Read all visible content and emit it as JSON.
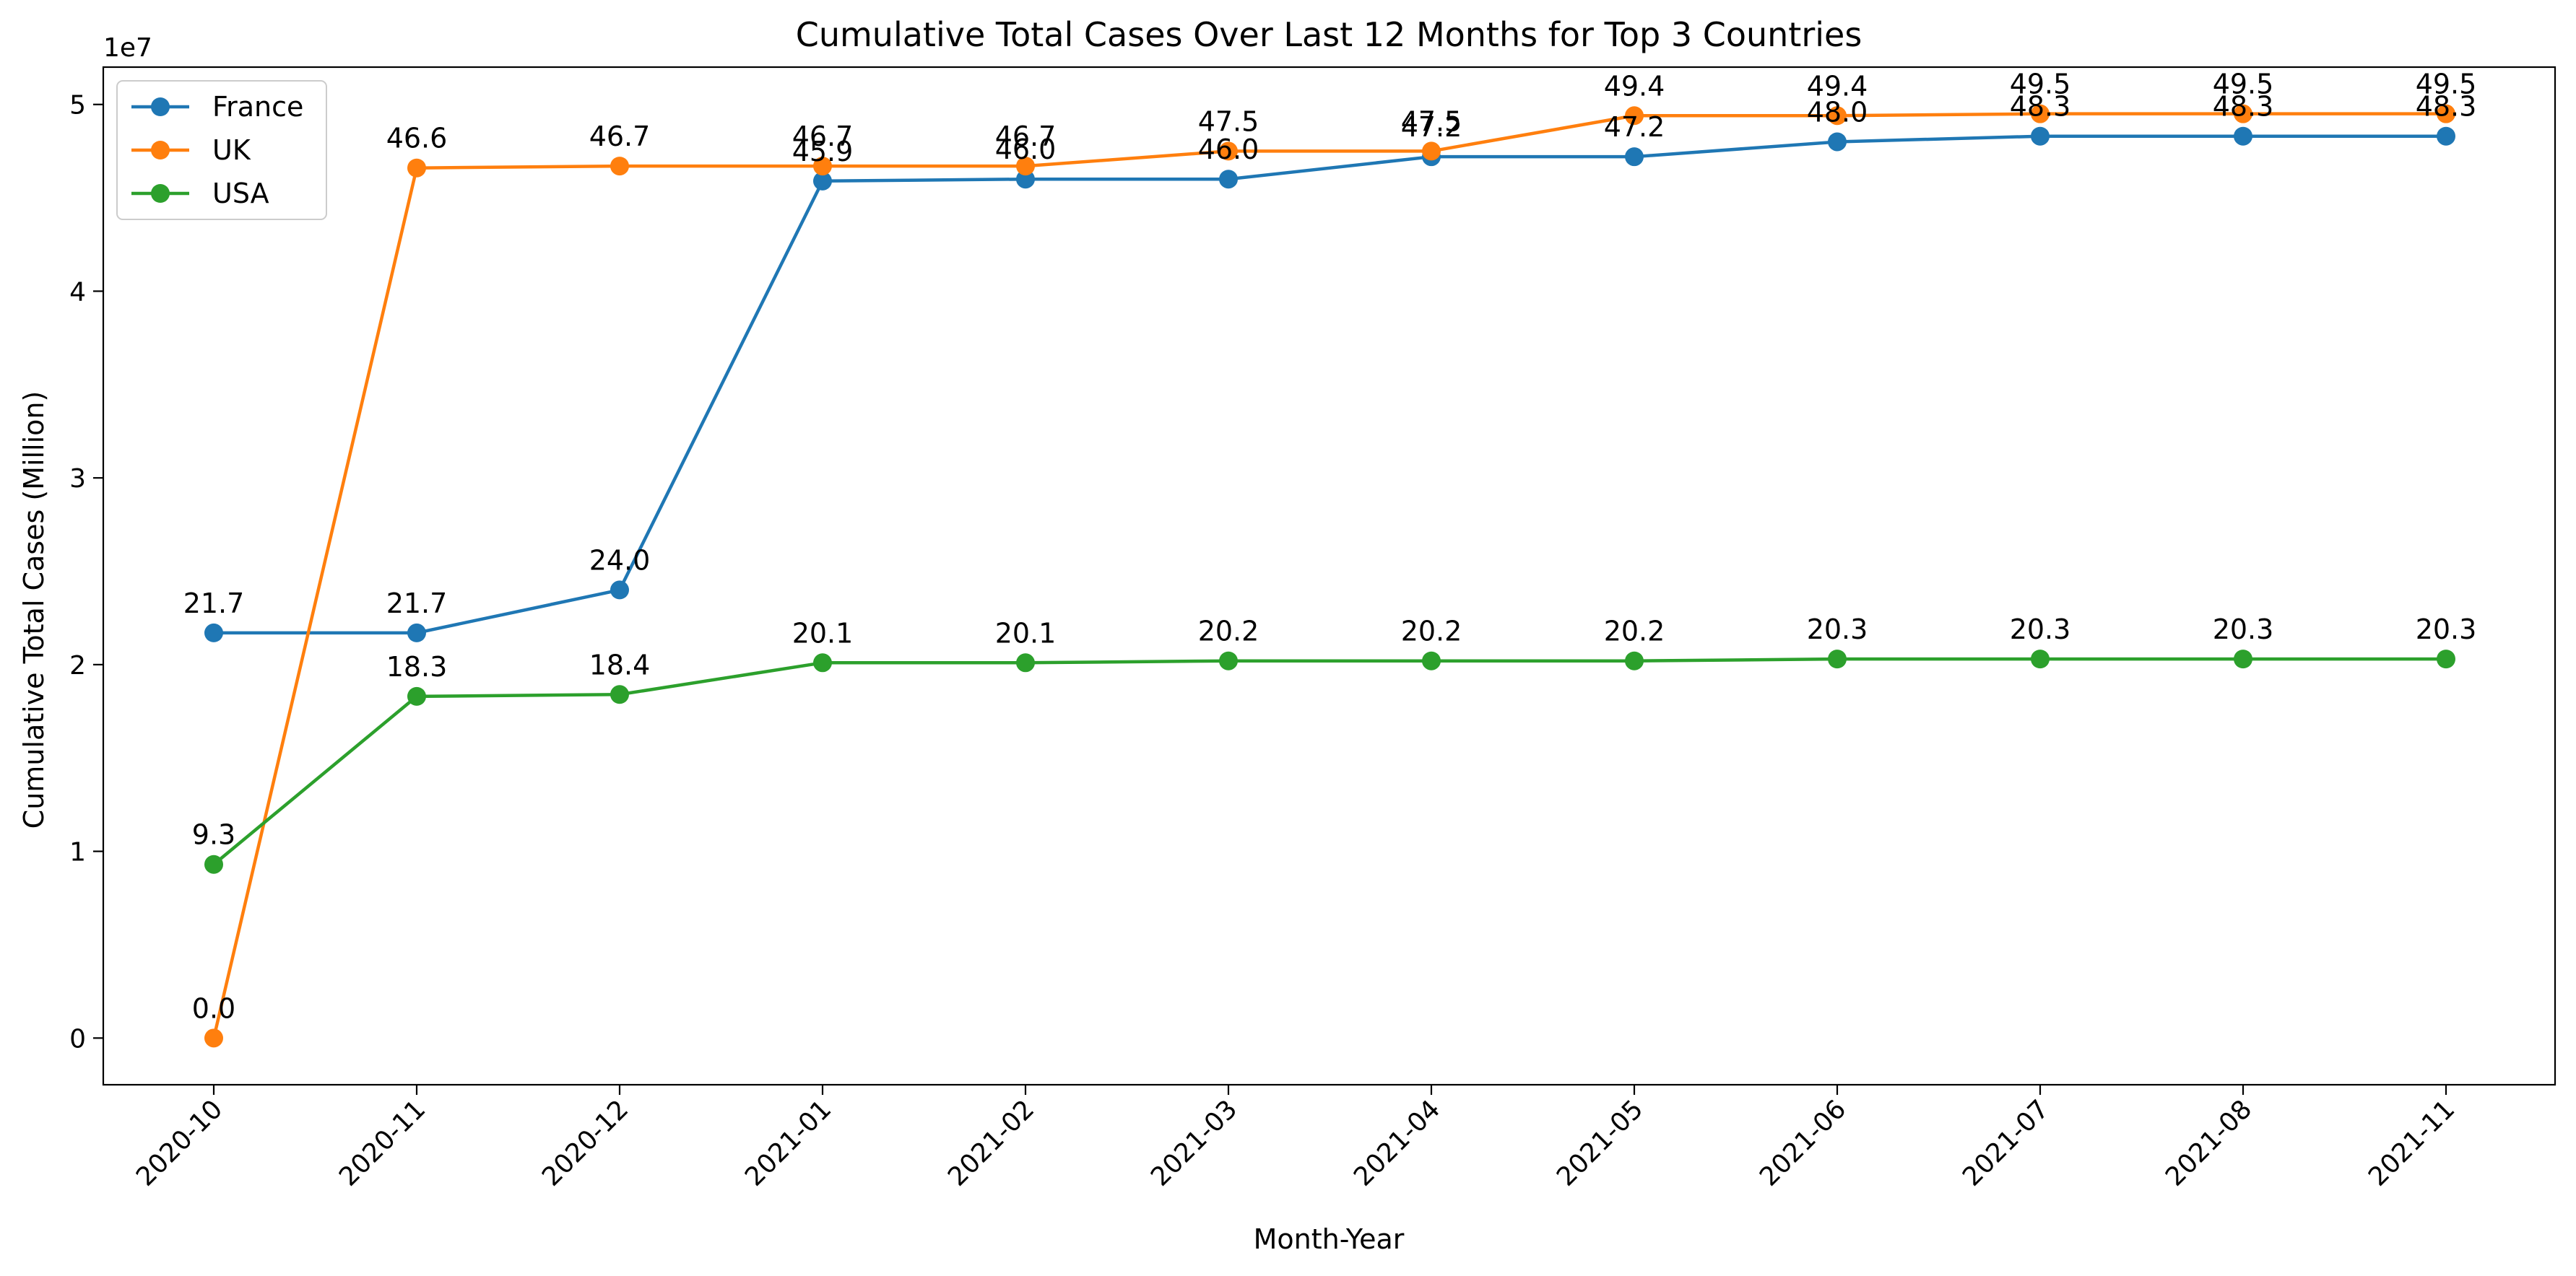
{
  "chart_data": {
    "type": "line",
    "title": "Cumulative Total Cases Over Last 12 Months for Top 3 Countries",
    "xlabel": "Month-Year",
    "ylabel": "Cumulative Total Cases (Million)",
    "y_offset_text": "1e7",
    "categories": [
      "2020-10",
      "2020-11",
      "2020-12",
      "2021-01",
      "2021-02",
      "2021-03",
      "2021-04",
      "2021-05",
      "2021-06",
      "2021-07",
      "2021-08",
      "2021-11"
    ],
    "y_ticks": [
      0,
      1,
      2,
      3,
      4,
      5
    ],
    "ylim": [
      -0.25,
      5.2
    ],
    "grid": false,
    "legend_position": "top-left",
    "series": [
      {
        "name": "France",
        "color": "#1f77b4",
        "values": [
          2.17,
          2.17,
          2.4,
          4.59,
          4.6,
          4.6,
          4.72,
          4.72,
          4.8,
          4.83,
          4.83,
          4.83
        ],
        "labels": [
          "21.7",
          "21.7",
          "24.0",
          "45.9",
          "46.0",
          "46.0",
          "47.2",
          "47.2",
          "48.0",
          "48.3",
          "48.3",
          "48.3"
        ]
      },
      {
        "name": "UK",
        "color": "#ff7f0e",
        "values": [
          0.0,
          4.66,
          4.67,
          4.67,
          4.67,
          4.75,
          4.75,
          4.94,
          4.94,
          4.95,
          4.95,
          4.95
        ],
        "labels": [
          "0.0",
          "46.6",
          "46.7",
          "46.7",
          "46.7",
          "47.5",
          "47.5",
          "49.4",
          "49.4",
          "49.5",
          "49.5",
          "49.5"
        ]
      },
      {
        "name": "USA",
        "color": "#2ca02c",
        "values": [
          0.93,
          1.83,
          1.84,
          2.01,
          2.01,
          2.02,
          2.02,
          2.02,
          2.03,
          2.03,
          2.03,
          2.03
        ],
        "labels": [
          "9.3",
          "18.3",
          "18.4",
          "20.1",
          "20.1",
          "20.2",
          "20.2",
          "20.2",
          "20.3",
          "20.3",
          "20.3",
          "20.3"
        ]
      }
    ]
  }
}
